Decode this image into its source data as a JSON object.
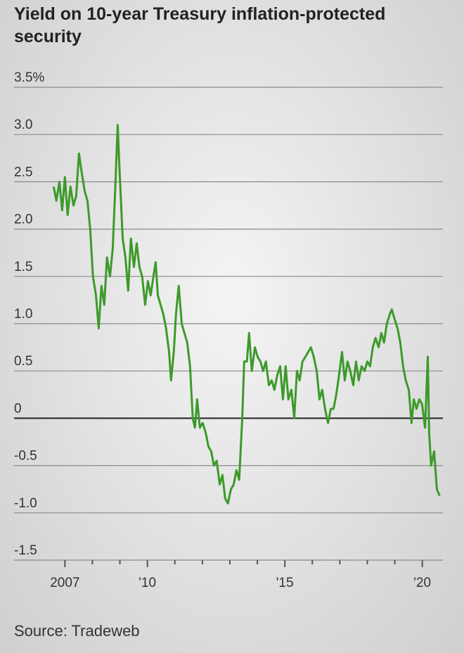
{
  "chart_data": {
    "type": "line",
    "title": "Yield on 10-year Treasury inflation-protected security",
    "source": "Source: Tradeweb",
    "xlim": [
      2005.15,
      2020.75
    ],
    "xticks": [
      2007,
      {
        "value": 2010,
        "label": "'10"
      },
      {
        "value": 2015,
        "label": "'15"
      },
      {
        "value": 2020,
        "label": "'20"
      }
    ],
    "xminorticks": [
      2008,
      2009,
      2011,
      2012,
      2013,
      2014,
      2016,
      2017,
      2018,
      2019
    ],
    "ylim": [
      -1.5,
      3.5
    ],
    "yticks": [
      {
        "value": 3.5,
        "label": "3.5%"
      },
      {
        "value": 3,
        "label": "3.0"
      },
      2.5,
      {
        "value": 2,
        "label": "2.0"
      },
      1.5,
      {
        "value": 1,
        "label": "1.0"
      },
      0.5,
      0,
      -0.5,
      {
        "value": -1,
        "label": "-1.0"
      },
      -1.5
    ],
    "grid": true,
    "x": [
      2006.59,
      2006.69,
      2006.8,
      2006.9,
      2007.0,
      2007.1,
      2007.2,
      2007.31,
      2007.41,
      2007.51,
      2007.61,
      2007.72,
      2007.82,
      2007.92,
      2008.02,
      2008.13,
      2008.23,
      2008.33,
      2008.43,
      2008.53,
      2008.64,
      2008.74,
      2008.84,
      2008.92,
      2008.99,
      2009.1,
      2009.2,
      2009.3,
      2009.4,
      2009.51,
      2009.61,
      2009.71,
      2009.81,
      2009.92,
      2010.02,
      2010.12,
      2010.22,
      2010.3,
      2010.38,
      2010.48,
      2010.58,
      2010.68,
      2010.79,
      2010.86,
      2010.96,
      2011.04,
      2011.14,
      2011.25,
      2011.35,
      2011.45,
      2011.55,
      2011.65,
      2011.73,
      2011.81,
      2011.91,
      2012.01,
      2012.12,
      2012.22,
      2012.32,
      2012.42,
      2012.52,
      2012.63,
      2012.73,
      2012.83,
      2012.93,
      2013.04,
      2013.14,
      2013.24,
      2013.34,
      2013.45,
      2013.52,
      2013.62,
      2013.7,
      2013.8,
      2013.91,
      2014.01,
      2014.11,
      2014.21,
      2014.31,
      2014.42,
      2014.52,
      2014.62,
      2014.72,
      2014.83,
      2014.93,
      2015.03,
      2015.13,
      2015.24,
      2015.34,
      2015.44,
      2015.54,
      2015.64,
      2015.75,
      2015.85,
      2015.95,
      2016.05,
      2016.16,
      2016.26,
      2016.36,
      2016.46,
      2016.57,
      2016.67,
      2016.77,
      2016.87,
      2016.97,
      2017.08,
      2017.18,
      2017.28,
      2017.38,
      2017.49,
      2017.59,
      2017.69,
      2017.79,
      2017.9,
      2018.0,
      2018.1,
      2018.2,
      2018.3,
      2018.41,
      2018.51,
      2018.61,
      2018.71,
      2018.82,
      2018.89,
      2018.99,
      2019.1,
      2019.2,
      2019.3,
      2019.4,
      2019.51,
      2019.61,
      2019.69,
      2019.79,
      2019.89,
      2019.99,
      2020.1,
      2020.2,
      2020.25,
      2020.32,
      2020.43,
      2020.53,
      2020.63
    ],
    "series": [
      {
        "color": "#3c9a2a",
        "values": [
          2.45,
          2.3,
          2.5,
          2.2,
          2.55,
          2.15,
          2.45,
          2.25,
          2.35,
          2.8,
          2.6,
          2.4,
          2.3,
          2.0,
          1.5,
          1.3,
          0.95,
          1.4,
          1.2,
          1.7,
          1.5,
          1.8,
          2.5,
          3.1,
          2.6,
          1.9,
          1.7,
          1.35,
          1.9,
          1.6,
          1.85,
          1.6,
          1.5,
          1.2,
          1.45,
          1.3,
          1.5,
          1.65,
          1.3,
          1.2,
          1.1,
          0.95,
          0.7,
          0.4,
          0.7,
          1.1,
          1.4,
          1.0,
          0.9,
          0.8,
          0.55,
          0.0,
          -0.1,
          0.2,
          -0.1,
          -0.05,
          -0.15,
          -0.3,
          -0.35,
          -0.5,
          -0.45,
          -0.7,
          -0.6,
          -0.85,
          -0.9,
          -0.75,
          -0.7,
          -0.55,
          -0.65,
          0.0,
          0.6,
          0.6,
          0.9,
          0.5,
          0.75,
          0.65,
          0.6,
          0.5,
          0.6,
          0.35,
          0.4,
          0.3,
          0.45,
          0.55,
          0.2,
          0.55,
          0.2,
          0.3,
          0.0,
          0.5,
          0.4,
          0.6,
          0.65,
          0.7,
          0.75,
          0.65,
          0.5,
          0.2,
          0.3,
          0.1,
          -0.05,
          0.1,
          0.1,
          0.25,
          0.45,
          0.7,
          0.4,
          0.6,
          0.5,
          0.35,
          0.6,
          0.4,
          0.55,
          0.5,
          0.6,
          0.55,
          0.75,
          0.85,
          0.75,
          0.9,
          0.8,
          1.0,
          1.1,
          1.15,
          1.05,
          0.95,
          0.8,
          0.55,
          0.4,
          0.3,
          -0.05,
          0.2,
          0.1,
          0.2,
          0.15,
          -0.1,
          0.65,
          -0.15,
          -0.5,
          -0.35,
          -0.75,
          -0.82
        ]
      }
    ]
  }
}
